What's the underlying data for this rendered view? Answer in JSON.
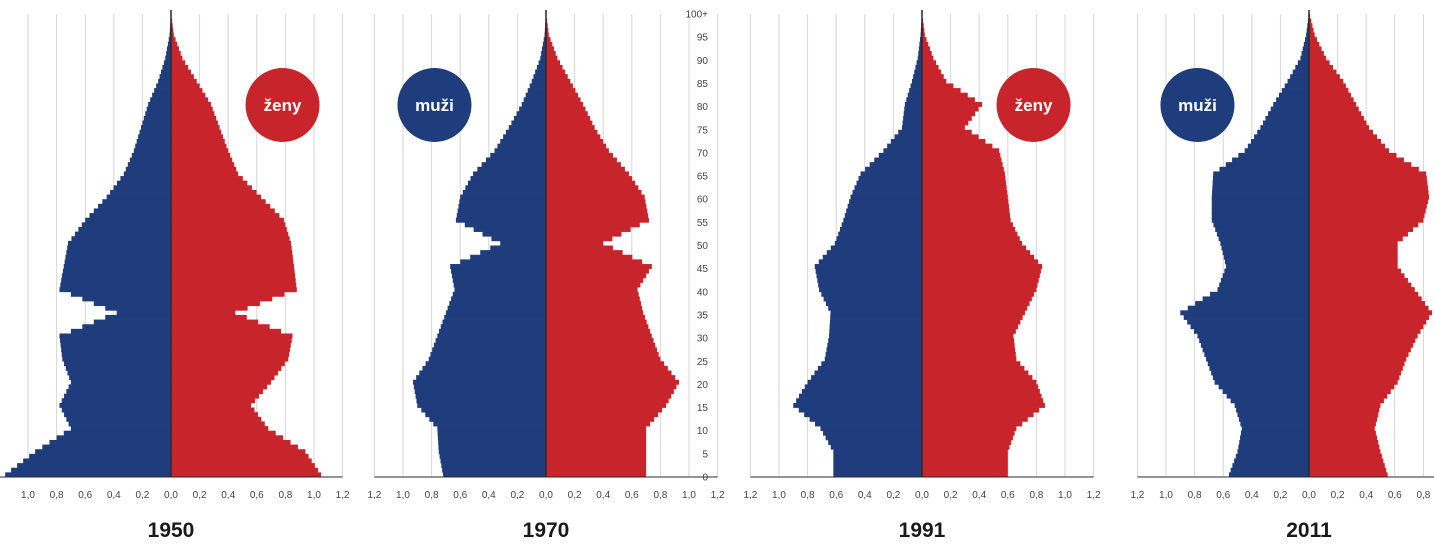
{
  "chart_data": {
    "type": "bar",
    "orientation": "horizontal",
    "subtype": "population-pyramid",
    "colors": {
      "male": "#1f3d7c",
      "female": "#c8242b",
      "axis": "#2a2a2a",
      "grid": "#d6d6d6"
    },
    "age_axis": {
      "min": 0,
      "max": 100,
      "labels": [
        "0",
        "5",
        "10",
        "15",
        "20",
        "25",
        "30",
        "35",
        "40",
        "45",
        "50",
        "55",
        "60",
        "65",
        "70",
        "75",
        "80",
        "85",
        "90",
        "95",
        "100+"
      ]
    },
    "x_tick_labels": [
      "1,2",
      "1,0",
      "0,8",
      "0,6",
      "0,4",
      "0,2",
      "0,0",
      "0,2",
      "0,4",
      "0,6",
      "0,8",
      "1,0",
      "1,2"
    ],
    "panels": [
      {
        "year": "1950",
        "badge": {
          "text": "ženy",
          "side": "female"
        },
        "ages": [
          0,
          5,
          10,
          15,
          20,
          25,
          30,
          35,
          40,
          45,
          50,
          55,
          60,
          65,
          70,
          75,
          80,
          85,
          90,
          95,
          100
        ],
        "male": [
          1.16,
          0.95,
          0.7,
          0.78,
          0.7,
          0.76,
          0.78,
          0.38,
          0.78,
          0.75,
          0.72,
          0.6,
          0.45,
          0.33,
          0.26,
          0.21,
          0.16,
          0.09,
          0.04,
          0.01,
          0.0
        ],
        "female": [
          1.05,
          0.94,
          0.68,
          0.56,
          0.7,
          0.82,
          0.85,
          0.45,
          0.88,
          0.86,
          0.84,
          0.79,
          0.63,
          0.47,
          0.4,
          0.34,
          0.28,
          0.18,
          0.08,
          0.02,
          0.0
        ]
      },
      {
        "year": "1970",
        "badge": {
          "text": "muži",
          "side": "male"
        },
        "ages": [
          0,
          5,
          10,
          15,
          20,
          25,
          30,
          35,
          40,
          45,
          50,
          55,
          60,
          65,
          70,
          75,
          80,
          85,
          90,
          95,
          100
        ],
        "male": [
          0.72,
          0.75,
          0.76,
          0.9,
          0.93,
          0.82,
          0.76,
          0.7,
          0.64,
          0.67,
          0.32,
          0.63,
          0.6,
          0.51,
          0.36,
          0.26,
          0.17,
          0.1,
          0.04,
          0.01,
          0.0
        ],
        "female": [
          0.7,
          0.7,
          0.7,
          0.84,
          0.93,
          0.8,
          0.74,
          0.68,
          0.64,
          0.74,
          0.4,
          0.72,
          0.69,
          0.58,
          0.44,
          0.34,
          0.26,
          0.17,
          0.08,
          0.02,
          0.0
        ]
      },
      {
        "year": "1991",
        "badge": {
          "text": "ženy",
          "side": "female"
        },
        "ages": [
          0,
          5,
          10,
          15,
          20,
          25,
          30,
          35,
          40,
          45,
          50,
          55,
          60,
          65,
          70,
          75,
          80,
          85,
          90,
          95,
          100
        ],
        "male": [
          0.62,
          0.62,
          0.71,
          0.9,
          0.8,
          0.68,
          0.65,
          0.64,
          0.72,
          0.75,
          0.61,
          0.55,
          0.5,
          0.43,
          0.27,
          0.14,
          0.12,
          0.07,
          0.03,
          0.01,
          0.0
        ],
        "female": [
          0.6,
          0.6,
          0.66,
          0.86,
          0.8,
          0.66,
          0.64,
          0.72,
          0.8,
          0.84,
          0.7,
          0.62,
          0.6,
          0.58,
          0.54,
          0.3,
          0.42,
          0.17,
          0.08,
          0.02,
          0.0
        ]
      },
      {
        "year": "2011",
        "badge": {
          "text": "muži",
          "side": "male"
        },
        "ages": [
          0,
          5,
          10,
          15,
          20,
          25,
          30,
          35,
          40,
          45,
          50,
          55,
          60,
          65,
          70,
          75,
          80,
          85,
          90,
          95,
          100
        ],
        "male": [
          0.56,
          0.5,
          0.47,
          0.52,
          0.66,
          0.72,
          0.78,
          0.9,
          0.64,
          0.58,
          0.62,
          0.68,
          0.68,
          0.67,
          0.45,
          0.34,
          0.25,
          0.15,
          0.06,
          0.02,
          0.0
        ],
        "female": [
          0.55,
          0.5,
          0.46,
          0.5,
          0.62,
          0.68,
          0.76,
          0.86,
          0.74,
          0.62,
          0.62,
          0.8,
          0.84,
          0.82,
          0.56,
          0.42,
          0.33,
          0.24,
          0.12,
          0.04,
          0.0
        ]
      }
    ]
  }
}
